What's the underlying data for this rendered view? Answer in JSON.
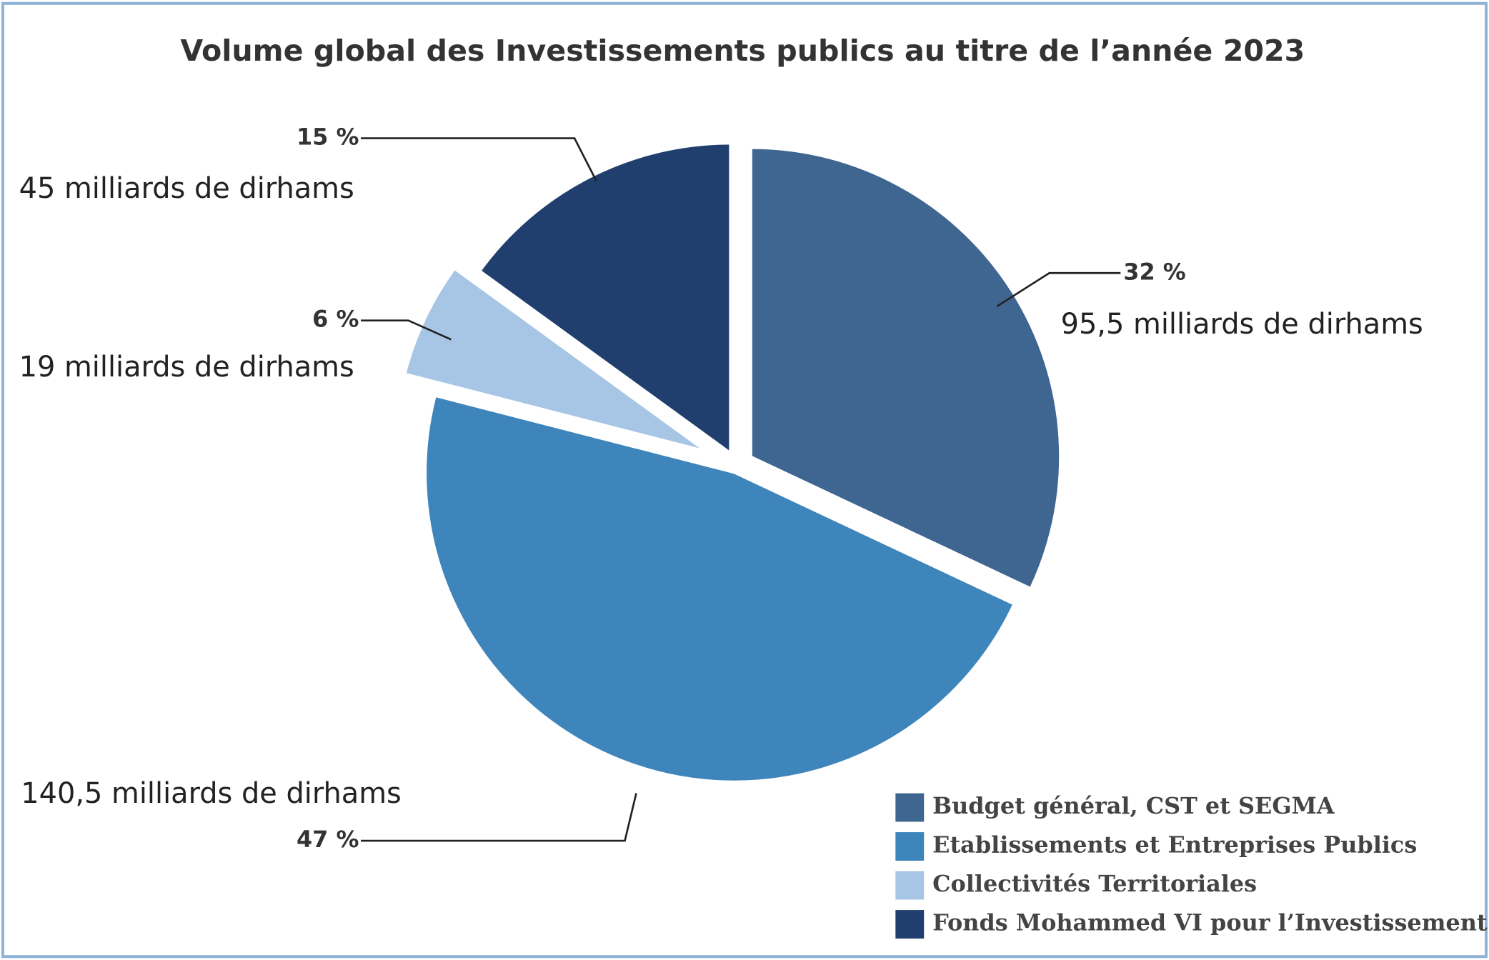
{
  "chart_data": {
    "type": "pie",
    "title": "Volume global des Investissements publics au titre de l’année 2023",
    "categories": [
      "Budget général, CST et SEGMA",
      "Etablissements et Entreprises Publics",
      "Collectivités Territoriales",
      "Fonds Mohammed VI pour l’Investissement"
    ],
    "values": [
      32,
      47,
      6,
      15
    ],
    "value_labels": [
      "32 %",
      "47 %",
      "6 %",
      "15 %"
    ],
    "amount_labels": [
      "95,5 milliards de dirhams",
      "140,5  milliards de dirhams",
      "19 milliards de dirhams",
      "45 milliards de dirhams"
    ],
    "colors": [
      "#3f6591",
      "#3e85bb",
      "#a7c6e6",
      "#213f6e"
    ],
    "legend": "lower right"
  }
}
